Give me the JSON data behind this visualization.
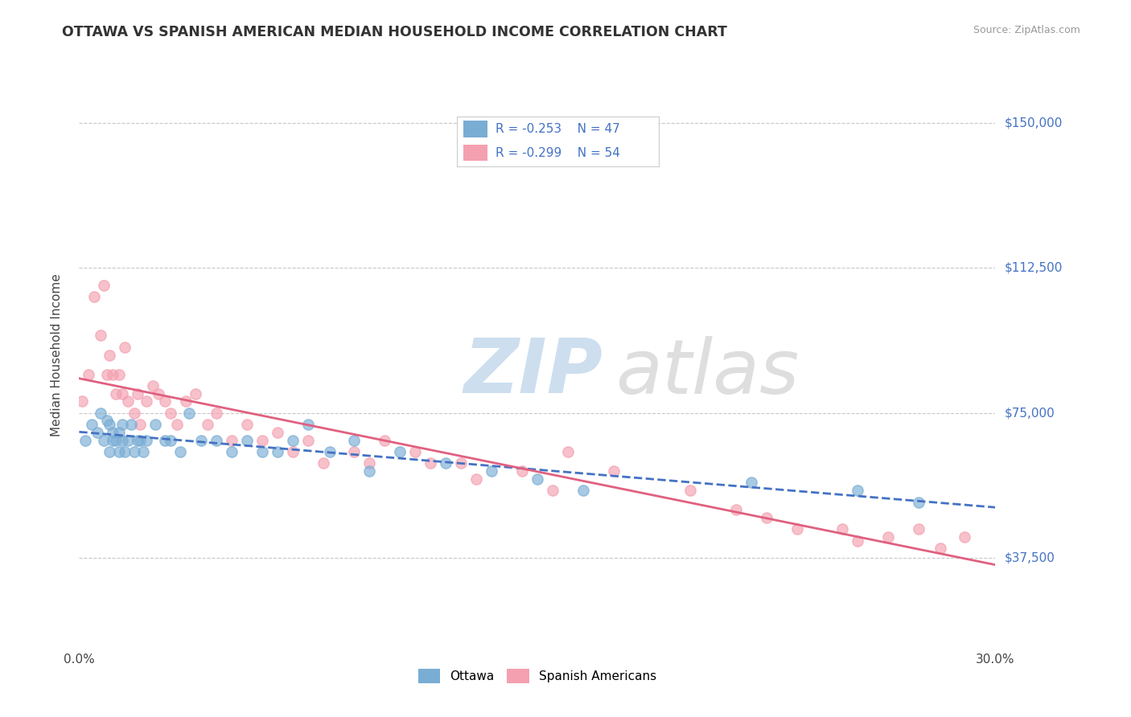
{
  "title": "OTTAWA VS SPANISH AMERICAN MEDIAN HOUSEHOLD INCOME CORRELATION CHART",
  "source": "Source: ZipAtlas.com",
  "ylabel": "Median Household Income",
  "xlim": [
    0.0,
    0.3
  ],
  "ylim": [
    15000,
    165000
  ],
  "yticks": [
    37500,
    75000,
    112500,
    150000
  ],
  "ytick_labels": [
    "$37,500",
    "$75,000",
    "$112,500",
    "$150,000"
  ],
  "xticks": [
    0.0,
    0.05,
    0.1,
    0.15,
    0.2,
    0.25,
    0.3
  ],
  "xtick_labels": [
    "0.0%",
    "",
    "",
    "",
    "",
    "",
    "30.0%"
  ],
  "color_ottawa": "#7aadd4",
  "color_spanish": "#f4a0b0",
  "color_blue": "#4472c4",
  "color_pink": "#e06080",
  "watermark_zip": "ZIP",
  "watermark_atlas": "atlas",
  "background_color": "#ffffff",
  "grid_color": "#c8c8c8",
  "ottawa_x": [
    0.002,
    0.004,
    0.006,
    0.007,
    0.008,
    0.009,
    0.01,
    0.01,
    0.011,
    0.011,
    0.012,
    0.013,
    0.013,
    0.014,
    0.014,
    0.015,
    0.016,
    0.017,
    0.018,
    0.019,
    0.02,
    0.021,
    0.022,
    0.025,
    0.028,
    0.03,
    0.033,
    0.036,
    0.04,
    0.045,
    0.05,
    0.055,
    0.06,
    0.065,
    0.07,
    0.075,
    0.082,
    0.09,
    0.095,
    0.105,
    0.12,
    0.135,
    0.15,
    0.165,
    0.22,
    0.255,
    0.275
  ],
  "ottawa_y": [
    68000,
    72000,
    70000,
    75000,
    68000,
    73000,
    65000,
    72000,
    68000,
    70000,
    68000,
    65000,
    70000,
    72000,
    68000,
    65000,
    68000,
    72000,
    65000,
    68000,
    68000,
    65000,
    68000,
    72000,
    68000,
    68000,
    65000,
    75000,
    68000,
    68000,
    65000,
    68000,
    65000,
    65000,
    68000,
    72000,
    65000,
    68000,
    60000,
    65000,
    62000,
    60000,
    58000,
    55000,
    57000,
    55000,
    52000
  ],
  "spanish_x": [
    0.001,
    0.003,
    0.005,
    0.007,
    0.008,
    0.009,
    0.01,
    0.011,
    0.012,
    0.013,
    0.014,
    0.015,
    0.016,
    0.018,
    0.019,
    0.02,
    0.022,
    0.024,
    0.026,
    0.028,
    0.03,
    0.032,
    0.035,
    0.038,
    0.042,
    0.045,
    0.05,
    0.055,
    0.06,
    0.065,
    0.07,
    0.075,
    0.08,
    0.09,
    0.095,
    0.1,
    0.11,
    0.115,
    0.125,
    0.13,
    0.145,
    0.155,
    0.16,
    0.175,
    0.2,
    0.215,
    0.225,
    0.235,
    0.25,
    0.255,
    0.265,
    0.275,
    0.282,
    0.29
  ],
  "spanish_y": [
    78000,
    85000,
    105000,
    95000,
    108000,
    85000,
    90000,
    85000,
    80000,
    85000,
    80000,
    92000,
    78000,
    75000,
    80000,
    72000,
    78000,
    82000,
    80000,
    78000,
    75000,
    72000,
    78000,
    80000,
    72000,
    75000,
    68000,
    72000,
    68000,
    70000,
    65000,
    68000,
    62000,
    65000,
    62000,
    68000,
    65000,
    62000,
    62000,
    58000,
    60000,
    55000,
    65000,
    60000,
    55000,
    50000,
    48000,
    45000,
    45000,
    42000,
    43000,
    45000,
    40000,
    43000
  ]
}
